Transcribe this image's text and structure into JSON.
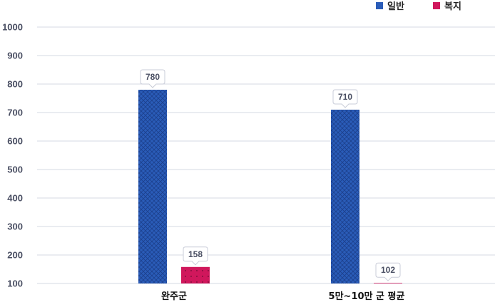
{
  "chart_data": {
    "type": "bar",
    "categories": [
      "완주군",
      "5만~10만 군 평균"
    ],
    "series": [
      {
        "name": "일반",
        "values": [
          780,
          710
        ],
        "color": "#2a5cb8",
        "pattern": "crosshatch"
      },
      {
        "name": "복지",
        "values": [
          158,
          102
        ],
        "color": "#d0175c",
        "pattern": "dots"
      }
    ],
    "yticks": [
      100,
      200,
      300,
      400,
      500,
      600,
      700,
      800,
      900,
      1000
    ],
    "ylim": [
      100,
      1000
    ],
    "grid": true,
    "legend_position": "top-right",
    "data_labels": true
  }
}
